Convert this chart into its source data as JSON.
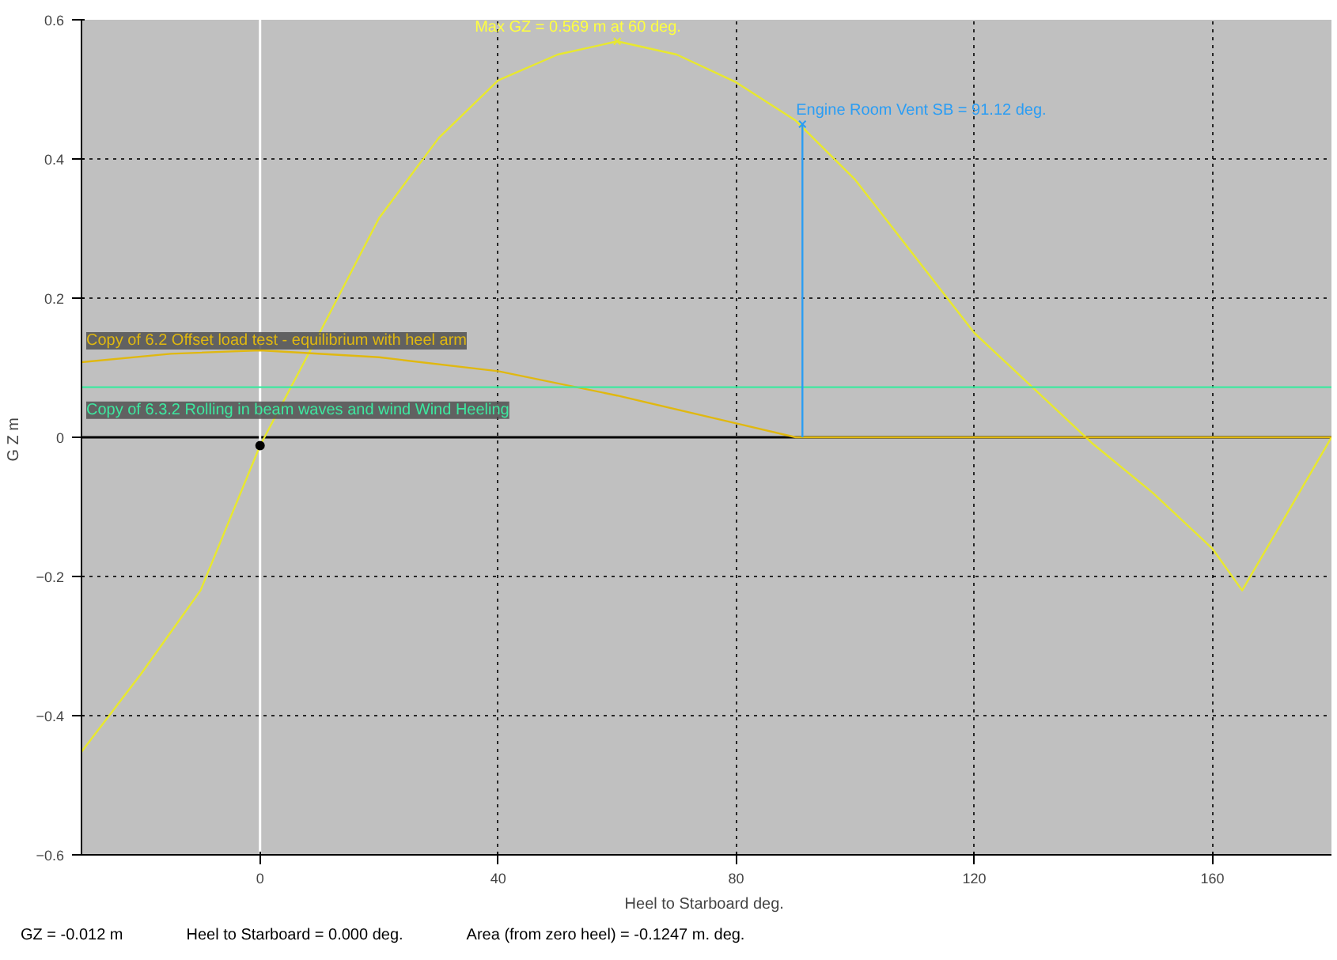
{
  "chart_data": {
    "type": "line",
    "xlabel": "Heel to Starboard  deg.",
    "ylabel": "G Z  m",
    "xlim": [
      -30,
      180
    ],
    "ylim": [
      -0.6,
      0.6
    ],
    "xticks": [
      0,
      40,
      80,
      120,
      160
    ],
    "yticks": [
      -0.6,
      -0.4,
      -0.2,
      0,
      0.2,
      0.4,
      0.6
    ],
    "grid": true,
    "series": [
      {
        "color": "#e8e82e",
        "x": [
          -30,
          -20,
          -10,
          0,
          10,
          20,
          30,
          40,
          50,
          60,
          70,
          80,
          90,
          100,
          110,
          120,
          130,
          140,
          150,
          160,
          165,
          180
        ],
        "values": [
          -0.452,
          -0.34,
          -0.22,
          -0.012,
          0.15,
          0.315,
          0.43,
          0.513,
          0.55,
          0.569,
          0.55,
          0.51,
          0.455,
          0.37,
          0.26,
          0.15,
          0.07,
          -0.01,
          -0.08,
          -0.16,
          -0.22,
          0.0
        ]
      },
      {
        "name": "Copy of 6.2 Offset load test - equilibrium with heel arm",
        "color": "#e0b810",
        "x": [
          -30,
          -15,
          0,
          20,
          40,
          60,
          80,
          90,
          180
        ],
        "values": [
          0.108,
          0.12,
          0.125,
          0.115,
          0.095,
          0.06,
          0.02,
          0.0,
          0.0
        ]
      },
      {
        "name": "Copy of 6.3.2 Rolling in beam waves and wind Wind Heeling",
        "color": "#3ee8a0",
        "x": [
          -30,
          180
        ],
        "values": [
          0.072,
          0.072
        ]
      },
      {
        "color": "#2a9df4",
        "x": [
          91.12,
          91.12
        ],
        "values": [
          0.0,
          0.45
        ]
      },
      {
        "type": "scatter",
        "marker": "cross",
        "color": "#e8e82e",
        "x": [
          60
        ],
        "values": [
          0.569
        ]
      },
      {
        "type": "scatter",
        "marker": "cross",
        "color": "#2a9df4",
        "x": [
          91.12
        ],
        "values": [
          0.45
        ]
      },
      {
        "type": "scatter",
        "marker": "circle",
        "color": "#000000",
        "x": [
          0
        ],
        "values": [
          -0.012
        ]
      }
    ],
    "ref_lines": [
      {
        "axis": "y",
        "value": 0,
        "color": "#000000"
      },
      {
        "axis": "x",
        "value": 0,
        "color": "#ffffff"
      }
    ],
    "annotations": [
      {
        "text": "Max GZ = 0.569 m at 60 deg.",
        "x": 60,
        "y": 0.569
      },
      {
        "text": "Engine Room Vent SB = 91.12 deg.",
        "x": 91.12,
        "y": 0.45
      },
      "GZ =  -0.012 m",
      "Heel to Starboard =  0.000  deg.",
      "Area (from zero heel) =  -0.1247 m. deg."
    ]
  }
}
